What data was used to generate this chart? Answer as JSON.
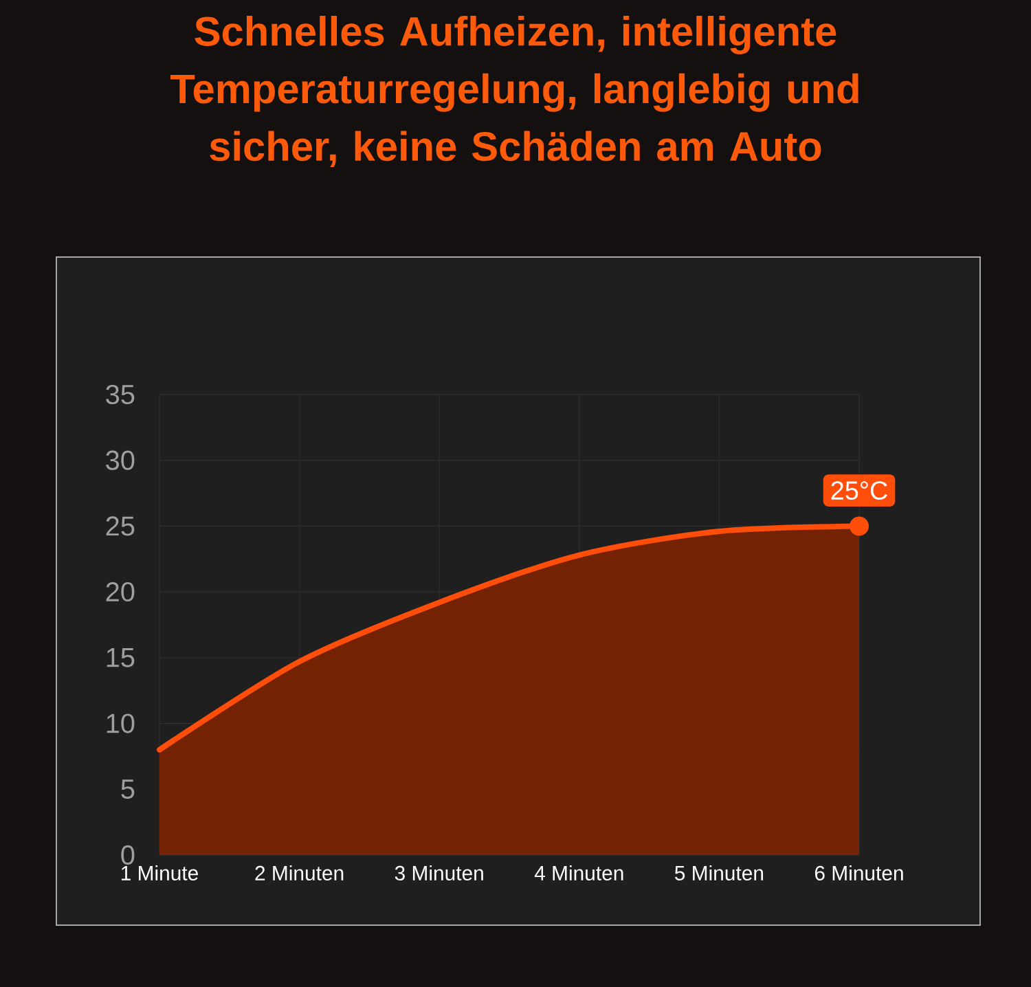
{
  "chart_data": {
    "type": "area",
    "title": "Schnelles Aufheizen, intelligente Temperaturregelung, langlebig und sicher, keine Schäden am Auto",
    "categories": [
      "1 Minute",
      "2 Minuten",
      "3 Minuten",
      "4 Minuten",
      "5 Minuten",
      "6 Minuten"
    ],
    "series": [
      {
        "color": "#ff4d0a",
        "values": [
          8,
          14.7,
          19.2,
          22.8,
          24.6,
          25
        ],
        "value_labels": [
          null,
          null,
          null,
          null,
          null,
          "25°C"
        ]
      }
    ],
    "ylim": [
      0,
      35
    ],
    "yticks": [
      0,
      5,
      10,
      15,
      20,
      25,
      30,
      35
    ],
    "grid": true
  }
}
